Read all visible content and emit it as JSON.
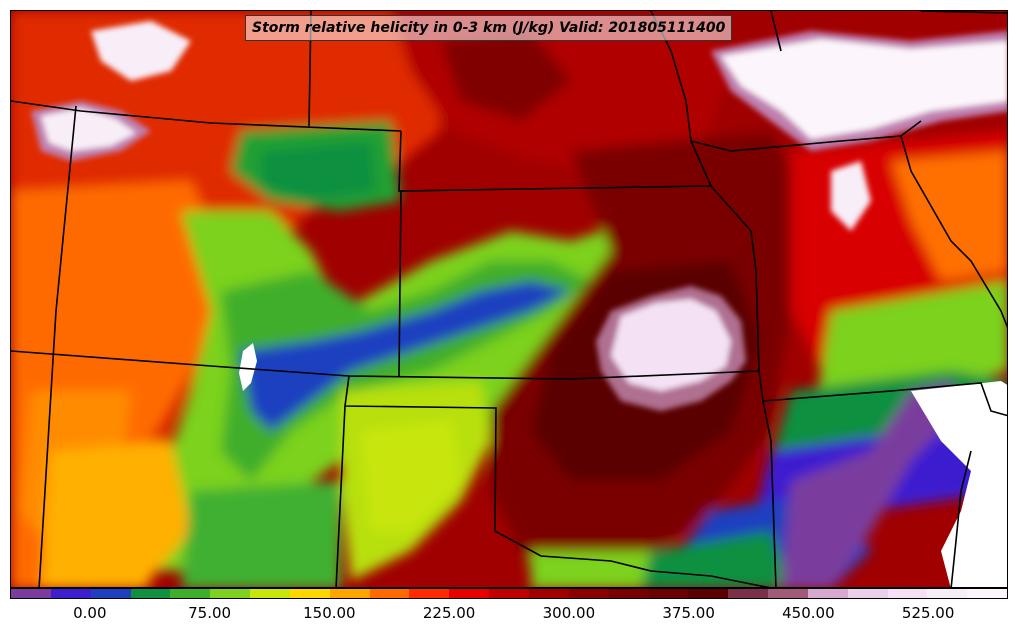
{
  "title": "Storm relative helicity in 0-3 km (J/kg) Valid: 201805111400",
  "colorbar": {
    "colors": [
      "#7a3d9e",
      "#3d1fd0",
      "#1f3fc0",
      "#109040",
      "#3fae2a",
      "#7cd21f",
      "#c8e60a",
      "#ffd700",
      "#ffa500",
      "#ff6a00",
      "#ff2a00",
      "#e60000",
      "#c00000",
      "#a00000",
      "#8a0000",
      "#780000",
      "#6a0000",
      "#5a0000",
      "#7a3048",
      "#a05a7a",
      "#d8a8d0",
      "#ead0ea",
      "#f4e2f4",
      "#f8eef8",
      "#fcf6fc"
    ],
    "range": [
      -50,
      575
    ],
    "tick_values": [
      0,
      75,
      150,
      225,
      300,
      375,
      450,
      525
    ],
    "tick_labels": [
      "0.00",
      "75.00",
      "150.00",
      "225.00",
      "300.00",
      "375.00",
      "450.00",
      "525.00"
    ]
  }
}
